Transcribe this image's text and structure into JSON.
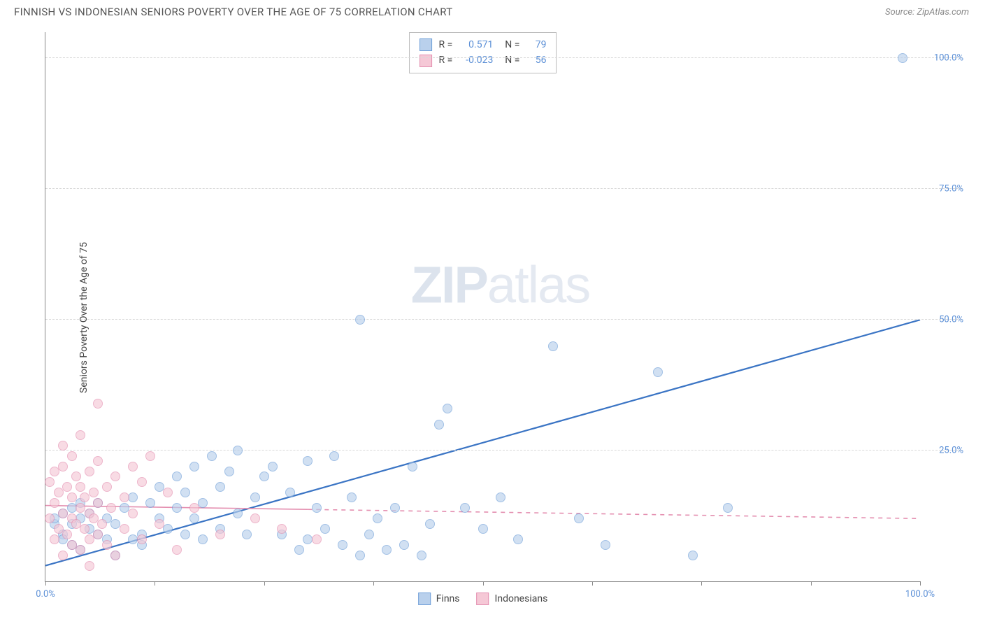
{
  "header": {
    "title": "FINNISH VS INDONESIAN SENIORS POVERTY OVER THE AGE OF 75 CORRELATION CHART",
    "source_prefix": "Source: ",
    "source_name": "ZipAtlas.com"
  },
  "ylabel": "Seniors Poverty Over the Age of 75",
  "watermark": {
    "bold": "ZIP",
    "rest": "atlas"
  },
  "chart": {
    "type": "scatter",
    "xlim": [
      0,
      100
    ],
    "ylim": [
      0,
      105
    ],
    "x_ticks": [
      0,
      12.5,
      25,
      37.5,
      50,
      62.5,
      75,
      87.5,
      100
    ],
    "x_tick_labels": {
      "0": "0.0%",
      "100": "100.0%"
    },
    "y_gridlines": [
      25,
      50,
      75,
      100
    ],
    "y_tick_labels": {
      "25": "25.0%",
      "50": "50.0%",
      "75": "75.0%",
      "100": "100.0%"
    },
    "background_color": "#ffffff",
    "grid_color": "#d8d8d8",
    "axis_color": "#888888",
    "tick_label_color": "#5b8fd6",
    "marker_radius": 7,
    "marker_stroke_width": 1.2,
    "series": [
      {
        "name": "Finns",
        "fill": "#b9d0ec",
        "stroke": "#6f9fd8",
        "fill_opacity": 0.65,
        "R": "0.571",
        "N": "79",
        "trend": {
          "x1": 0,
          "y1": 3,
          "x2": 100,
          "y2": 50,
          "color": "#3a74c4",
          "width": 2.2,
          "dash": "none"
        },
        "points": [
          [
            1,
            11
          ],
          [
            1,
            12
          ],
          [
            2,
            9
          ],
          [
            2,
            13
          ],
          [
            2,
            8
          ],
          [
            3,
            11
          ],
          [
            3,
            14
          ],
          [
            3,
            7
          ],
          [
            4,
            12
          ],
          [
            4,
            15
          ],
          [
            4,
            6
          ],
          [
            5,
            10
          ],
          [
            5,
            13
          ],
          [
            6,
            9
          ],
          [
            6,
            15
          ],
          [
            7,
            12
          ],
          [
            7,
            8
          ],
          [
            8,
            11
          ],
          [
            8,
            5
          ],
          [
            9,
            14
          ],
          [
            10,
            8
          ],
          [
            10,
            16
          ],
          [
            11,
            9
          ],
          [
            11,
            7
          ],
          [
            12,
            15
          ],
          [
            13,
            12
          ],
          [
            13,
            18
          ],
          [
            14,
            10
          ],
          [
            15,
            14
          ],
          [
            15,
            20
          ],
          [
            16,
            9
          ],
          [
            16,
            17
          ],
          [
            17,
            22
          ],
          [
            17,
            12
          ],
          [
            18,
            15
          ],
          [
            18,
            8
          ],
          [
            19,
            24
          ],
          [
            20,
            10
          ],
          [
            20,
            18
          ],
          [
            21,
            21
          ],
          [
            22,
            13
          ],
          [
            22,
            25
          ],
          [
            23,
            9
          ],
          [
            24,
            16
          ],
          [
            25,
            20
          ],
          [
            26,
            22
          ],
          [
            27,
            9
          ],
          [
            28,
            17
          ],
          [
            29,
            6
          ],
          [
            30,
            23
          ],
          [
            30,
            8
          ],
          [
            31,
            14
          ],
          [
            32,
            10
          ],
          [
            33,
            24
          ],
          [
            34,
            7
          ],
          [
            35,
            16
          ],
          [
            36,
            50
          ],
          [
            36,
            5
          ],
          [
            37,
            9
          ],
          [
            38,
            12
          ],
          [
            39,
            6
          ],
          [
            40,
            14
          ],
          [
            41,
            7
          ],
          [
            42,
            22
          ],
          [
            43,
            5
          ],
          [
            44,
            11
          ],
          [
            46,
            33
          ],
          [
            48,
            14
          ],
          [
            50,
            10
          ],
          [
            52,
            16
          ],
          [
            54,
            8
          ],
          [
            58,
            45
          ],
          [
            61,
            12
          ],
          [
            64,
            7
          ],
          [
            70,
            40
          ],
          [
            74,
            5
          ],
          [
            78,
            14
          ],
          [
            98,
            100
          ],
          [
            45,
            30
          ]
        ]
      },
      {
        "name": "Indonesians",
        "fill": "#f5c8d6",
        "stroke": "#e48fb0",
        "fill_opacity": 0.65,
        "R": "-0.023",
        "N": "56",
        "trend": {
          "x1": 0,
          "y1": 14.5,
          "x2": 100,
          "y2": 12,
          "color": "#e48fb0",
          "width": 1.6,
          "dash": "5,5",
          "solid_until_x": 30
        },
        "points": [
          [
            0.5,
            12
          ],
          [
            0.5,
            19
          ],
          [
            1,
            8
          ],
          [
            1,
            15
          ],
          [
            1,
            21
          ],
          [
            1.5,
            10
          ],
          [
            1.5,
            17
          ],
          [
            2,
            5
          ],
          [
            2,
            13
          ],
          [
            2,
            22
          ],
          [
            2,
            26
          ],
          [
            2.5,
            9
          ],
          [
            2.5,
            18
          ],
          [
            3,
            12
          ],
          [
            3,
            16
          ],
          [
            3,
            24
          ],
          [
            3,
            7
          ],
          [
            3.5,
            11
          ],
          [
            3.5,
            20
          ],
          [
            4,
            14
          ],
          [
            4,
            18
          ],
          [
            4,
            6
          ],
          [
            4,
            28
          ],
          [
            4.5,
            10
          ],
          [
            4.5,
            16
          ],
          [
            5,
            13
          ],
          [
            5,
            21
          ],
          [
            5,
            8
          ],
          [
            5,
            3
          ],
          [
            5.5,
            12
          ],
          [
            5.5,
            17
          ],
          [
            6,
            15
          ],
          [
            6,
            23
          ],
          [
            6,
            9
          ],
          [
            6,
            34
          ],
          [
            6.5,
            11
          ],
          [
            7,
            18
          ],
          [
            7,
            7
          ],
          [
            7.5,
            14
          ],
          [
            8,
            20
          ],
          [
            8,
            5
          ],
          [
            9,
            16
          ],
          [
            9,
            10
          ],
          [
            10,
            22
          ],
          [
            10,
            13
          ],
          [
            11,
            8
          ],
          [
            11,
            19
          ],
          [
            12,
            24
          ],
          [
            13,
            11
          ],
          [
            14,
            17
          ],
          [
            15,
            6
          ],
          [
            17,
            14
          ],
          [
            20,
            9
          ],
          [
            24,
            12
          ],
          [
            27,
            10
          ],
          [
            31,
            8
          ]
        ]
      }
    ]
  },
  "stats_box": {
    "r_label": "R =",
    "n_label": "N ="
  },
  "bottom_legend": [
    {
      "label": "Finns",
      "fill": "#b9d0ec",
      "stroke": "#6f9fd8"
    },
    {
      "label": "Indonesians",
      "fill": "#f5c8d6",
      "stroke": "#e48fb0"
    }
  ]
}
